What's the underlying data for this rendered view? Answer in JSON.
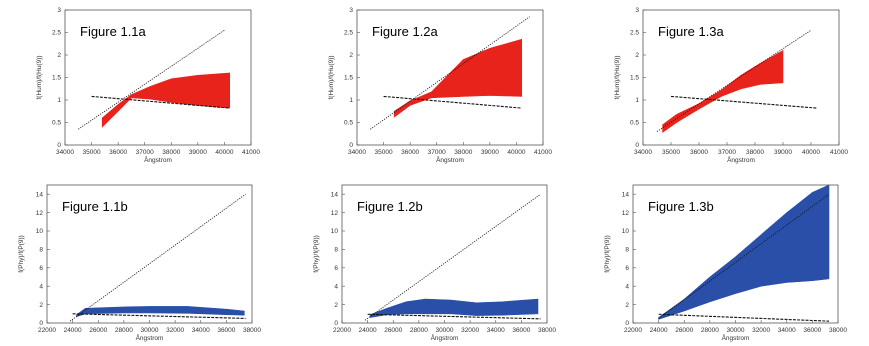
{
  "colors": {
    "top_band": "#e8231c",
    "bottom_band": "#2a4fa8",
    "axis": "#555555",
    "line": "#111111"
  },
  "chart_data": [
    {
      "type": "area",
      "title": "Figure 1.1a",
      "xlabel": "Ångstrom",
      "ylabel": "f(Hum)/f(Hu(9))",
      "xlim": [
        34000,
        41000
      ],
      "ylim": [
        0,
        3
      ],
      "xticks": [
        "34000",
        "35000",
        "36000",
        "37000",
        "38000",
        "39000",
        "40000",
        "41000"
      ],
      "yticks": [
        "0",
        "0.5",
        "1",
        "1.5",
        "2",
        "2.5",
        "3"
      ],
      "band": {
        "x": [
          35400,
          36000,
          36500,
          37200,
          38000,
          39000,
          40200
        ],
        "upper": [
          0.6,
          0.9,
          1.12,
          1.3,
          1.47,
          1.55,
          1.6
        ],
        "lower": [
          0.4,
          0.75,
          1.05,
          1.02,
          0.95,
          0.88,
          0.82
        ]
      },
      "dotted_line": {
        "x": [
          34500,
          40000
        ],
        "y": [
          0.35,
          2.55
        ]
      },
      "dashed_line": {
        "x": [
          35000,
          40200
        ],
        "y": [
          1.08,
          0.82
        ]
      }
    },
    {
      "type": "area",
      "title": "Figure 1.2a",
      "xlabel": "Ångstrom",
      "ylabel": "f(Hum)/f(Hu(9))",
      "xlim": [
        34000,
        41000
      ],
      "ylim": [
        0,
        3
      ],
      "xticks": [
        "34000",
        "35000",
        "36000",
        "37000",
        "38000",
        "39000",
        "40000",
        "41000"
      ],
      "yticks": [
        "0",
        "0.5",
        "1",
        "1.5",
        "2",
        "2.5",
        "3"
      ],
      "band": {
        "x": [
          35400,
          36000,
          36800,
          38000,
          39000,
          40200
        ],
        "upper": [
          0.75,
          0.98,
          1.18,
          1.9,
          2.15,
          2.35
        ],
        "lower": [
          0.62,
          0.88,
          1.05,
          1.08,
          1.1,
          1.08
        ]
      },
      "dotted_line": {
        "x": [
          34500,
          40500
        ],
        "y": [
          0.35,
          2.85
        ]
      },
      "dashed_line": {
        "x": [
          35000,
          40200
        ],
        "y": [
          1.08,
          0.82
        ]
      }
    },
    {
      "type": "area",
      "title": "Figure 1.3a",
      "xlabel": "Ångstrom",
      "ylabel": "f(Hum)/f(Hu(9))",
      "xlim": [
        34000,
        41000
      ],
      "ylim": [
        0,
        3
      ],
      "xticks": [
        "34000",
        "35000",
        "36000",
        "37000",
        "38000",
        "39000",
        "40000",
        "41000"
      ],
      "yticks": [
        "0",
        "0.5",
        "1",
        "1.5",
        "2",
        "2.5",
        "3"
      ],
      "band": {
        "x": [
          34700,
          35200,
          36000,
          36800,
          37500,
          38200,
          39000
        ],
        "upper": [
          0.45,
          0.68,
          0.92,
          1.22,
          1.55,
          1.82,
          2.1
        ],
        "lower": [
          0.28,
          0.5,
          0.8,
          1.08,
          1.25,
          1.35,
          1.38
        ]
      },
      "dotted_line": {
        "x": [
          34500,
          40000
        ],
        "y": [
          0.3,
          2.55
        ]
      },
      "dashed_line": {
        "x": [
          35000,
          40200
        ],
        "y": [
          1.08,
          0.82
        ]
      }
    },
    {
      "type": "area",
      "title": "Figure 1.1b",
      "xlabel": "Ångstrom",
      "ylabel": "f(Phy)/f(P(9))",
      "xlim": [
        22000,
        38000
      ],
      "ylim": [
        0,
        15
      ],
      "xticks": [
        "22000",
        "24000",
        "26000",
        "28000",
        "30000",
        "32000",
        "34000",
        "36000",
        "38000"
      ],
      "yticks": [
        "0",
        "2",
        "4",
        "6",
        "8",
        "10",
        "12",
        "14"
      ],
      "band": {
        "x": [
          24300,
          25000,
          28000,
          30000,
          33000,
          36000,
          37400
        ],
        "upper": [
          0.9,
          1.6,
          1.75,
          1.8,
          1.8,
          1.5,
          1.3
        ],
        "lower": [
          0.7,
          1.0,
          1.1,
          1.1,
          1.05,
          0.9,
          0.85
        ]
      },
      "dotted_line": {
        "x": [
          23800,
          37500
        ],
        "y": [
          0.2,
          14
        ]
      },
      "dashed_line": {
        "x": [
          24000,
          37500
        ],
        "y": [
          1.0,
          0.5
        ]
      }
    },
    {
      "type": "area",
      "title": "Figure 1.2b",
      "xlabel": "Ångstrom",
      "ylabel": "f(Phy)/f(P(9))",
      "xlim": [
        22000,
        38000
      ],
      "ylim": [
        0,
        15
      ],
      "xticks": [
        "22000",
        "24000",
        "26000",
        "28000",
        "30000",
        "32000",
        "34000",
        "36000",
        "38000"
      ],
      "yticks": [
        "0",
        "2",
        "4",
        "6",
        "8",
        "10",
        "12",
        "14"
      ],
      "band": {
        "x": [
          24200,
          25500,
          27000,
          28500,
          30500,
          32500,
          34500,
          37300
        ],
        "upper": [
          0.9,
          1.6,
          2.3,
          2.6,
          2.5,
          2.2,
          2.3,
          2.6
        ],
        "lower": [
          0.6,
          0.9,
          1.0,
          1.0,
          1.0,
          0.8,
          0.85,
          1.0
        ]
      },
      "dotted_line": {
        "x": [
          23800,
          37500
        ],
        "y": [
          0.3,
          14
        ]
      },
      "dashed_line": {
        "x": [
          24000,
          37500
        ],
        "y": [
          0.95,
          0.45
        ]
      }
    },
    {
      "type": "area",
      "title": "Figure 1.3b",
      "xlabel": "Ångstrom",
      "ylabel": "f(Phy)/f(P(9))",
      "xlim": [
        22000,
        38000
      ],
      "ylim": [
        0,
        15
      ],
      "xticks": [
        "22000",
        "24000",
        "26000",
        "28000",
        "30000",
        "32000",
        "34000",
        "36000",
        "38000"
      ],
      "yticks": [
        "0",
        "2",
        "4",
        "6",
        "8",
        "10",
        "12",
        "14"
      ],
      "band": {
        "x": [
          24000,
          26000,
          28000,
          30000,
          32000,
          34000,
          36000,
          37300
        ],
        "upper": [
          0.6,
          2.6,
          5.0,
          7.2,
          9.6,
          12.0,
          14.2,
          15.0
        ],
        "lower": [
          0.4,
          1.3,
          2.3,
          3.2,
          4.0,
          4.4,
          4.6,
          4.8
        ]
      },
      "dotted_line": {
        "x": [
          24000,
          37300
        ],
        "y": [
          0.5,
          14
        ]
      },
      "dashed_line": {
        "x": [
          24000,
          37300
        ],
        "y": [
          0.95,
          0.2
        ]
      }
    }
  ]
}
